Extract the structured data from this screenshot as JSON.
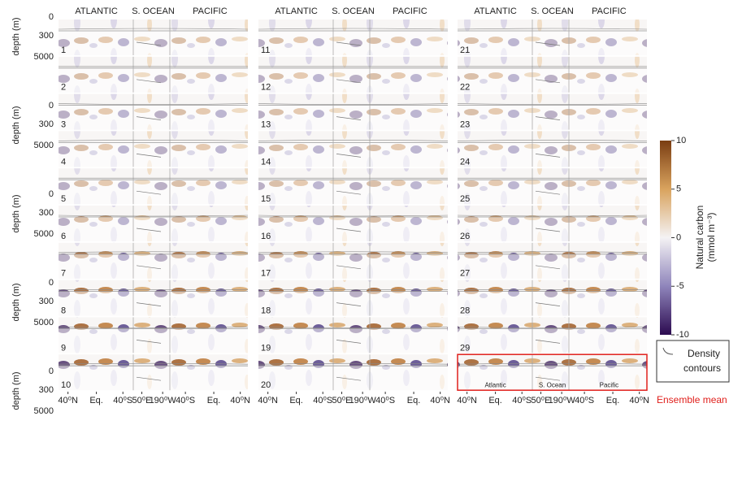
{
  "chart_data": {
    "type": "heatmap-grid",
    "column_headers": [
      "ATLANTIC",
      "S. OCEAN",
      "PACIFIC"
    ],
    "depth_label": "depth (m)",
    "depth_ticks": [
      0,
      300,
      5000
    ],
    "panel_labels": [
      1,
      2,
      3,
      4,
      5,
      6,
      7,
      8,
      9,
      10,
      11,
      12,
      13,
      14,
      15,
      16,
      17,
      18,
      19,
      20,
      21,
      22,
      23,
      24,
      25,
      26,
      27,
      28,
      29
    ],
    "x_tick_labels": [
      "40⁰N",
      "Eq.",
      "40⁰S",
      "50⁰E",
      "190⁰W",
      "40⁰S",
      "Eq.",
      "40⁰N"
    ],
    "ensemble_basin_labels": [
      "Atlantic",
      "S. Ocean",
      "Pacific"
    ],
    "ensemble_label": "Ensemble mean",
    "colorbar": {
      "label_lines": [
        "Natural carbon",
        "(mmol m⁻³)"
      ],
      "lim": [
        -10,
        10
      ],
      "ticks": [
        10,
        5,
        0,
        -5,
        -10
      ]
    },
    "legend": {
      "label_lines": [
        "Density",
        "contours"
      ]
    }
  }
}
